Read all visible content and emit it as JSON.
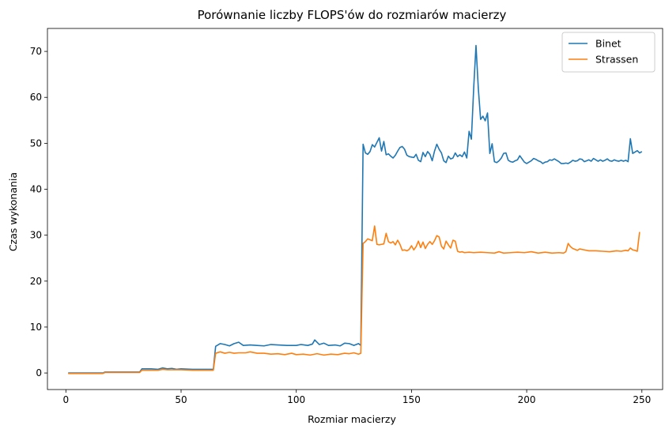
{
  "chart_data": {
    "type": "line",
    "title": "Porównanie liczby FLOPS'ów do rozmiarów macierzy",
    "xlabel": "Rozmiar macierzy",
    "ylabel": "Czas wykonania",
    "xlim": [
      -8,
      259
    ],
    "ylim": [
      -3.6,
      75
    ],
    "xticks": [
      0,
      50,
      100,
      150,
      200,
      250
    ],
    "yticks": [
      0,
      10,
      20,
      30,
      40,
      50,
      60,
      70
    ],
    "legend_position": "top-right",
    "grid": false,
    "series": [
      {
        "name": "Binet",
        "color": "#1f77b4",
        "points": [
          [
            1,
            0
          ],
          [
            16,
            0
          ],
          [
            17,
            0.2
          ],
          [
            32,
            0.2
          ],
          [
            33,
            0.9
          ],
          [
            37,
            0.9
          ],
          [
            40,
            0.8
          ],
          [
            42,
            1.1
          ],
          [
            44,
            0.9
          ],
          [
            46,
            1.0
          ],
          [
            48,
            0.8
          ],
          [
            50,
            0.9
          ],
          [
            55,
            0.8
          ],
          [
            60,
            0.8
          ],
          [
            64,
            0.8
          ],
          [
            65,
            5.8
          ],
          [
            67,
            6.4
          ],
          [
            69,
            6.2
          ],
          [
            71,
            5.9
          ],
          [
            73,
            6.4
          ],
          [
            75,
            6.7
          ],
          [
            77,
            6.0
          ],
          [
            80,
            6.1
          ],
          [
            83,
            6.0
          ],
          [
            86,
            5.9
          ],
          [
            89,
            6.2
          ],
          [
            92,
            6.1
          ],
          [
            96,
            6.0
          ],
          [
            100,
            6.0
          ],
          [
            102,
            6.2
          ],
          [
            105,
            6.0
          ],
          [
            107,
            6.3
          ],
          [
            108,
            7.2
          ],
          [
            110,
            6.2
          ],
          [
            112,
            6.5
          ],
          [
            114,
            6.0
          ],
          [
            117,
            6.1
          ],
          [
            119,
            5.9
          ],
          [
            121,
            6.5
          ],
          [
            123,
            6.4
          ],
          [
            125,
            6.0
          ],
          [
            127,
            6.4
          ],
          [
            128,
            6.0
          ],
          [
            129,
            49.8
          ],
          [
            130,
            47.9
          ],
          [
            131,
            47.6
          ],
          [
            132,
            48.2
          ],
          [
            133,
            49.7
          ],
          [
            134,
            49.2
          ],
          [
            135,
            50.2
          ],
          [
            136,
            51.2
          ],
          [
            137,
            48.3
          ],
          [
            138,
            50.4
          ],
          [
            139,
            47.5
          ],
          [
            140,
            47.7
          ],
          [
            141,
            47.2
          ],
          [
            142,
            46.8
          ],
          [
            143,
            47.4
          ],
          [
            144,
            48.3
          ],
          [
            145,
            49.1
          ],
          [
            146,
            49.3
          ],
          [
            147,
            48.7
          ],
          [
            148,
            47.4
          ],
          [
            149,
            47.1
          ],
          [
            150,
            47.0
          ],
          [
            151,
            46.9
          ],
          [
            152,
            47.6
          ],
          [
            153,
            46.3
          ],
          [
            154,
            46.0
          ],
          [
            155,
            48.0
          ],
          [
            156,
            47.1
          ],
          [
            157,
            48.2
          ],
          [
            158,
            47.6
          ],
          [
            159,
            46.2
          ],
          [
            160,
            48.3
          ],
          [
            161,
            49.8
          ],
          [
            162,
            48.7
          ],
          [
            163,
            47.9
          ],
          [
            164,
            46.2
          ],
          [
            165,
            45.8
          ],
          [
            166,
            47.2
          ],
          [
            167,
            46.6
          ],
          [
            168,
            46.8
          ],
          [
            169,
            47.9
          ],
          [
            170,
            47.1
          ],
          [
            171,
            47.5
          ],
          [
            172,
            47.1
          ],
          [
            173,
            48.1
          ],
          [
            174,
            46.8
          ],
          [
            175,
            52.6
          ],
          [
            176,
            50.9
          ],
          [
            177,
            62.0
          ],
          [
            178,
            71.3
          ],
          [
            179,
            62.0
          ],
          [
            180,
            55.2
          ],
          [
            181,
            55.9
          ],
          [
            182,
            54.9
          ],
          [
            183,
            56.6
          ],
          [
            184,
            47.8
          ],
          [
            185,
            49.9
          ],
          [
            186,
            46.0
          ],
          [
            187,
            45.8
          ],
          [
            188,
            46.2
          ],
          [
            189,
            46.8
          ],
          [
            190,
            47.8
          ],
          [
            191,
            47.9
          ],
          [
            192,
            46.3
          ],
          [
            193,
            46.0
          ],
          [
            194,
            45.9
          ],
          [
            195,
            46.2
          ],
          [
            196,
            46.4
          ],
          [
            197,
            47.3
          ],
          [
            198,
            46.6
          ],
          [
            199,
            45.9
          ],
          [
            200,
            45.6
          ],
          [
            201,
            45.9
          ],
          [
            202,
            46.2
          ],
          [
            203,
            46.7
          ],
          [
            204,
            46.5
          ],
          [
            205,
            46.2
          ],
          [
            206,
            46.0
          ],
          [
            207,
            45.6
          ],
          [
            208,
            45.9
          ],
          [
            209,
            46.0
          ],
          [
            210,
            46.4
          ],
          [
            211,
            46.3
          ],
          [
            212,
            46.6
          ],
          [
            213,
            46.3
          ],
          [
            214,
            46.0
          ],
          [
            215,
            45.6
          ],
          [
            216,
            45.6
          ],
          [
            217,
            45.7
          ],
          [
            218,
            45.6
          ],
          [
            219,
            45.9
          ],
          [
            220,
            46.3
          ],
          [
            221,
            46.1
          ],
          [
            222,
            46.2
          ],
          [
            223,
            46.6
          ],
          [
            224,
            46.5
          ],
          [
            225,
            46.0
          ],
          [
            226,
            46.2
          ],
          [
            227,
            46.4
          ],
          [
            228,
            46.1
          ],
          [
            229,
            46.7
          ],
          [
            230,
            46.4
          ],
          [
            231,
            46.1
          ],
          [
            232,
            46.4
          ],
          [
            233,
            46.1
          ],
          [
            234,
            46.3
          ],
          [
            235,
            46.6
          ],
          [
            236,
            46.2
          ],
          [
            237,
            46.1
          ],
          [
            238,
            46.4
          ],
          [
            239,
            46.2
          ],
          [
            240,
            46.1
          ],
          [
            241,
            46.3
          ],
          [
            242,
            46.1
          ],
          [
            243,
            46.3
          ],
          [
            244,
            46.0
          ],
          [
            245,
            51.0
          ],
          [
            246,
            47.8
          ],
          [
            247,
            48.1
          ],
          [
            248,
            48.4
          ],
          [
            249,
            47.9
          ],
          [
            250,
            48.2
          ]
        ]
      },
      {
        "name": "Strassen",
        "color": "#ff7f0e",
        "points": [
          [
            1,
            -0.1
          ],
          [
            16,
            -0.1
          ],
          [
            17,
            0.1
          ],
          [
            32,
            0.1
          ],
          [
            33,
            0.6
          ],
          [
            40,
            0.6
          ],
          [
            42,
            0.8
          ],
          [
            44,
            0.7
          ],
          [
            50,
            0.7
          ],
          [
            55,
            0.6
          ],
          [
            60,
            0.6
          ],
          [
            64,
            0.6
          ],
          [
            65,
            4.3
          ],
          [
            67,
            4.6
          ],
          [
            69,
            4.3
          ],
          [
            71,
            4.5
          ],
          [
            73,
            4.3
          ],
          [
            75,
            4.4
          ],
          [
            78,
            4.4
          ],
          [
            80,
            4.6
          ],
          [
            83,
            4.3
          ],
          [
            86,
            4.3
          ],
          [
            89,
            4.1
          ],
          [
            92,
            4.2
          ],
          [
            95,
            4.0
          ],
          [
            98,
            4.3
          ],
          [
            100,
            4.0
          ],
          [
            103,
            4.1
          ],
          [
            106,
            3.9
          ],
          [
            109,
            4.2
          ],
          [
            112,
            3.9
          ],
          [
            115,
            4.1
          ],
          [
            118,
            4.0
          ],
          [
            121,
            4.3
          ],
          [
            123,
            4.2
          ],
          [
            125,
            4.4
          ],
          [
            127,
            4.1
          ],
          [
            128,
            4.3
          ],
          [
            129,
            28.2
          ],
          [
            130,
            28.6
          ],
          [
            131,
            29.2
          ],
          [
            132,
            29.0
          ],
          [
            133,
            28.8
          ],
          [
            134,
            32.0
          ],
          [
            135,
            28.0
          ],
          [
            136,
            27.9
          ],
          [
            137,
            28.0
          ],
          [
            138,
            28.1
          ],
          [
            139,
            30.4
          ],
          [
            140,
            28.6
          ],
          [
            141,
            28.3
          ],
          [
            142,
            28.6
          ],
          [
            143,
            27.9
          ],
          [
            144,
            28.9
          ],
          [
            145,
            28.0
          ],
          [
            146,
            26.7
          ],
          [
            147,
            26.8
          ],
          [
            148,
            26.6
          ],
          [
            149,
            26.9
          ],
          [
            150,
            27.7
          ],
          [
            151,
            26.8
          ],
          [
            152,
            27.5
          ],
          [
            153,
            28.7
          ],
          [
            154,
            27.3
          ],
          [
            155,
            28.5
          ],
          [
            156,
            27.1
          ],
          [
            157,
            28.0
          ],
          [
            158,
            28.6
          ],
          [
            159,
            28.0
          ],
          [
            160,
            28.8
          ],
          [
            161,
            29.9
          ],
          [
            162,
            29.6
          ],
          [
            163,
            27.6
          ],
          [
            164,
            27.0
          ],
          [
            165,
            28.7
          ],
          [
            166,
            27.9
          ],
          [
            167,
            27.2
          ],
          [
            168,
            28.9
          ],
          [
            169,
            28.7
          ],
          [
            170,
            26.5
          ],
          [
            171,
            26.3
          ],
          [
            172,
            26.4
          ],
          [
            173,
            26.2
          ],
          [
            175,
            26.3
          ],
          [
            177,
            26.2
          ],
          [
            180,
            26.3
          ],
          [
            183,
            26.2
          ],
          [
            186,
            26.1
          ],
          [
            188,
            26.4
          ],
          [
            190,
            26.1
          ],
          [
            193,
            26.2
          ],
          [
            196,
            26.3
          ],
          [
            199,
            26.2
          ],
          [
            202,
            26.4
          ],
          [
            205,
            26.1
          ],
          [
            208,
            26.3
          ],
          [
            211,
            26.1
          ],
          [
            214,
            26.2
          ],
          [
            216,
            26.1
          ],
          [
            217,
            26.4
          ],
          [
            218,
            28.2
          ],
          [
            219,
            27.5
          ],
          [
            220,
            27.1
          ],
          [
            221,
            26.9
          ],
          [
            222,
            26.7
          ],
          [
            223,
            27.0
          ],
          [
            225,
            26.8
          ],
          [
            227,
            26.6
          ],
          [
            230,
            26.6
          ],
          [
            233,
            26.5
          ],
          [
            236,
            26.4
          ],
          [
            239,
            26.6
          ],
          [
            241,
            26.5
          ],
          [
            243,
            26.7
          ],
          [
            244,
            26.6
          ],
          [
            245,
            27.2
          ],
          [
            246,
            26.8
          ],
          [
            247,
            26.7
          ],
          [
            248,
            26.5
          ],
          [
            249,
            30.7
          ]
        ]
      }
    ]
  }
}
